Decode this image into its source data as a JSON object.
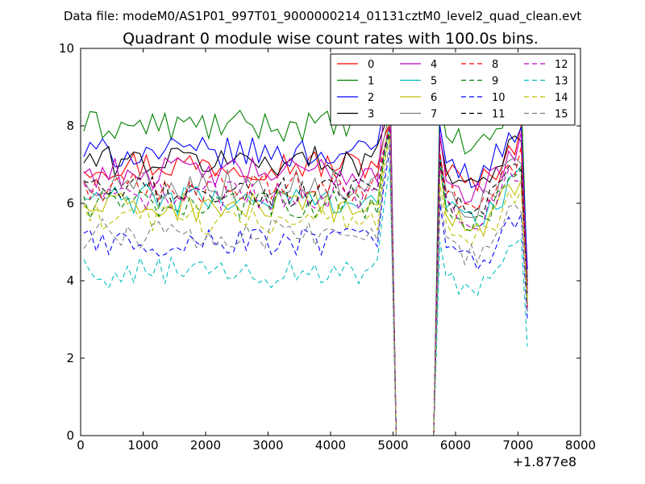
{
  "header": {
    "data_file": "Data file: modeM0/AS1P01_997T01_9000000214_01131cztM0_level2_quad_clean.evt"
  },
  "chart_data": {
    "type": "line",
    "title": "Quadrant 0 module wise count rates with 100.0s bins.",
    "xlabel": "",
    "ylabel": "",
    "x_offset_label": "+1.877e8",
    "xlim": [
      0,
      8000
    ],
    "ylim": [
      0,
      10
    ],
    "xticks": [
      0,
      1000,
      2000,
      3000,
      4000,
      5000,
      6000,
      7000,
      8000
    ],
    "yticks": [
      0,
      2,
      4,
      6,
      8,
      10
    ],
    "grid": false,
    "legend_position": "top-right",
    "legend_columns": 4,
    "gap": {
      "from": 5050,
      "to": 5650
    },
    "x": {
      "start": 50,
      "step": 100,
      "first_end": 4950,
      "second_start": 5750,
      "second_end": 7150
    },
    "series": [
      {
        "name": "0",
        "color": "#ff0000",
        "dash": "solid",
        "level": 7.0,
        "pre_peak": 8.1,
        "post_peak": 7.7,
        "last": 3.3
      },
      {
        "name": "1",
        "color": "#008000",
        "dash": "solid",
        "level": 8.0,
        "pre_peak": 9.6,
        "post_peak": 8.8,
        "last": 4.0
      },
      {
        "name": "2",
        "color": "#0000ff",
        "dash": "solid",
        "level": 7.3,
        "pre_peak": 9.2,
        "post_peak": 8.0,
        "last": 4.3
      },
      {
        "name": "3",
        "color": "#000000",
        "dash": "solid",
        "level": 7.1,
        "pre_peak": 8.5,
        "post_peak": 7.7,
        "last": 3.9
      },
      {
        "name": "4",
        "color": "#bf00bf",
        "dash": "solid",
        "level": 6.8,
        "pre_peak": 9.3,
        "post_peak": 7.8,
        "last": 3.8
      },
      {
        "name": "5",
        "color": "#00bfbf",
        "dash": "solid",
        "level": 6.1,
        "pre_peak": 8.0,
        "post_peak": 7.2,
        "last": 3.6
      },
      {
        "name": "6",
        "color": "#bfbf00",
        "dash": "solid",
        "level": 5.9,
        "pre_peak": 8.2,
        "post_peak": 7.0,
        "last": 3.5
      },
      {
        "name": "7",
        "color": "#808080",
        "dash": "solid",
        "level": 6.5,
        "pre_peak": 8.4,
        "post_peak": 7.3,
        "last": 3.7
      },
      {
        "name": "8",
        "color": "#ff0000",
        "dash": "dashed",
        "level": 6.4,
        "pre_peak": 8.0,
        "post_peak": 7.3,
        "last": 3.7
      },
      {
        "name": "9",
        "color": "#008000",
        "dash": "dashed",
        "level": 6.0,
        "pre_peak": 7.8,
        "post_peak": 7.0,
        "last": 3.4
      },
      {
        "name": "10",
        "color": "#0000ff",
        "dash": "dashed",
        "level": 5.0,
        "pre_peak": 7.4,
        "post_peak": 6.0,
        "last": 3.0
      },
      {
        "name": "11",
        "color": "#000000",
        "dash": "dashed",
        "level": 6.3,
        "pre_peak": 7.9,
        "post_peak": 7.1,
        "last": 3.6
      },
      {
        "name": "12",
        "color": "#bf00bf",
        "dash": "dashed",
        "level": 6.2,
        "pre_peak": 8.1,
        "post_peak": 7.0,
        "last": 3.7
      },
      {
        "name": "13",
        "color": "#00bfbf",
        "dash": "dashed",
        "level": 4.2,
        "pre_peak": 7.0,
        "post_peak": 5.0,
        "last": 2.3
      },
      {
        "name": "14",
        "color": "#bfbf00",
        "dash": "dashed",
        "level": 5.6,
        "pre_peak": 7.8,
        "post_peak": 6.5,
        "last": 3.5
      },
      {
        "name": "15",
        "color": "#808080",
        "dash": "dashed",
        "level": 5.2,
        "pre_peak": 7.6,
        "post_peak": 6.2,
        "last": 3.2
      }
    ]
  }
}
